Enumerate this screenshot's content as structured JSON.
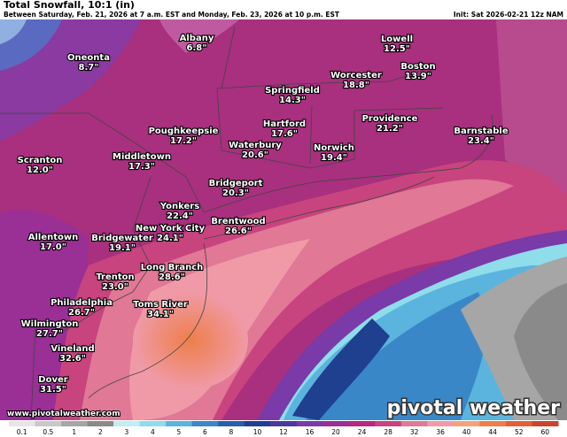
{
  "header": {
    "title": "Total Snowfall, 10:1 (in)",
    "subtitle": "Between Saturday, Feb. 21, 2026 at 7 a.m. EST and Monday, Feb. 23, 2026 at 10 p.m. EST",
    "init": "Init: Sat 2026-02-21 12z NAM"
  },
  "cities": [
    {
      "name": "Albany",
      "label": "6.8\""
    },
    {
      "name": "Oneonta",
      "label": "8.7\""
    },
    {
      "name": "Lowell",
      "label": "12.5\""
    },
    {
      "name": "Boston",
      "label": "13.9\""
    },
    {
      "name": "Worcester",
      "label": "18.8\""
    },
    {
      "name": "Springfield",
      "label": "14.3\""
    },
    {
      "name": "Providence",
      "label": "21.2\""
    },
    {
      "name": "Barnstable",
      "label": "23.4\""
    },
    {
      "name": "Poughkeepsie",
      "label": "17.2\""
    },
    {
      "name": "Hartford",
      "label": "17.6\""
    },
    {
      "name": "Waterbury",
      "label": "20.6\""
    },
    {
      "name": "Norwich",
      "label": "19.4\""
    },
    {
      "name": "Middletown",
      "label": "17.3\""
    },
    {
      "name": "Scranton",
      "label": "12.0\""
    },
    {
      "name": "Bridgeport",
      "label": "20.3\""
    },
    {
      "name": "Yonkers",
      "label": "22.4\""
    },
    {
      "name": "Brentwood",
      "label": "26.6\""
    },
    {
      "name": "New York City",
      "label": "24.1\""
    },
    {
      "name": "Allentown",
      "label": "17.0\""
    },
    {
      "name": "Bridgewater",
      "label": "19.1\""
    },
    {
      "name": "Long Branch",
      "label": "28.6\""
    },
    {
      "name": "Trenton",
      "label": "23.0\""
    },
    {
      "name": "Philadelphia",
      "label": "26.7\""
    },
    {
      "name": "Toms River",
      "label": "34.1\""
    },
    {
      "name": "Wilmington",
      "label": "27.7\""
    },
    {
      "name": "Vineland",
      "label": "32.6\""
    },
    {
      "name": "Dover",
      "label": "31.5\""
    }
  ],
  "legend": {
    "ticks": [
      "0.1",
      "0.5",
      "1",
      "2",
      "3",
      "4",
      "5",
      "6",
      "8",
      "10",
      "12",
      "16",
      "20",
      "24",
      "28",
      "32",
      "36",
      "40",
      "44",
      "52",
      "60"
    ],
    "colors": [
      "#e6e6e6",
      "#c8c8c8",
      "#a6a6a6",
      "#8a8a8a",
      "#bfeff5",
      "#8fdceb",
      "#5ab4de",
      "#3a87c8",
      "#2760a8",
      "#1f3f8f",
      "#4a3a9a",
      "#7a3aa8",
      "#9a2f96",
      "#b8287e",
      "#c8447e",
      "#e07896",
      "#f09aa8",
      "#f5a27a",
      "#ee7f4a",
      "#e0603a",
      "#c84530"
    ]
  },
  "footer": {
    "website": "www.pivotalweather.com",
    "brand": "pivotal weather"
  }
}
